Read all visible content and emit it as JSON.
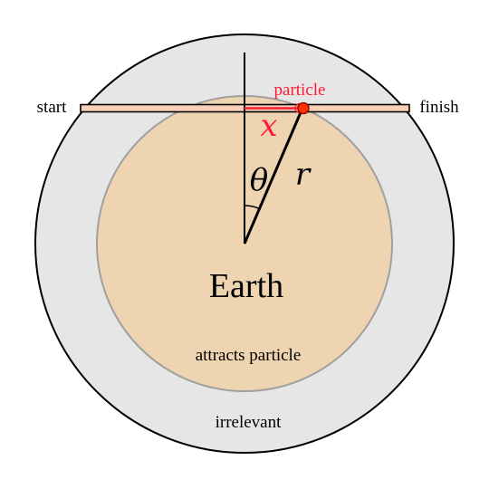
{
  "labels": {
    "start": "start",
    "finish": "finish",
    "particle": "particle",
    "x_symbol": "x",
    "theta_symbol": "θ",
    "r_symbol": "r",
    "earth": "Earth",
    "inner_caption": "attracts particle",
    "outer_caption": "irrelevant"
  },
  "colors": {
    "outer_fill": "#e6e6e6",
    "earth_fill": "#eed4b0",
    "earth_stroke": "#a0a0a0",
    "tunnel_fill": "#fbd0b8",
    "accent_red": "#ff1a33",
    "particle_fill": "#ff3300",
    "line": "#000000"
  }
}
